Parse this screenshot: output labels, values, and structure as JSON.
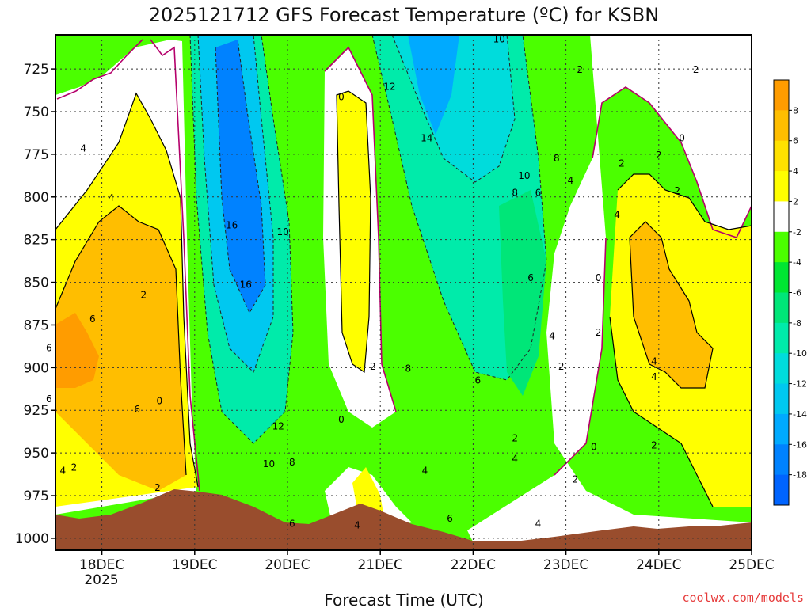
{
  "chart_data": {
    "type": "heatmap",
    "title": "2025121712 GFS Forecast Temperature (ºC) for KSBN",
    "xlabel": "Forecast Time (UTC)",
    "ylabel": "",
    "x_ticks": [
      "18DEC",
      "19DEC",
      "20DEC",
      "21DEC",
      "22DEC",
      "23DEC",
      "24DEC",
      "25DEC"
    ],
    "x_year": "2025",
    "x_range_days": [
      17.5,
      25.0
    ],
    "y_ticks": [
      725,
      750,
      775,
      800,
      825,
      850,
      875,
      900,
      925,
      950,
      975,
      1000
    ],
    "y_range_hpa": [
      705,
      1007
    ],
    "colorbar": {
      "labels": [
        "8",
        "6",
        "4",
        "2",
        "-2",
        "-4",
        "-6",
        "-8",
        "-10",
        "-12",
        "-14",
        "-16",
        "-18"
      ],
      "colors": [
        "#ff9c00",
        "#ffbe00",
        "#ffe100",
        "#ffff00",
        "#ffffff",
        "#4bff00",
        "#00e632",
        "#00e678",
        "#00ebaa",
        "#00dcdc",
        "#00c8f0",
        "#00aaff",
        "#0082ff",
        "#0064ff"
      ]
    },
    "contour_labels": [
      {
        "t": 17.8,
        "p": 771,
        "v": "4"
      },
      {
        "t": 18.1,
        "p": 800,
        "v": "4"
      },
      {
        "t": 17.9,
        "p": 871,
        "v": "6"
      },
      {
        "t": 17.43,
        "p": 888,
        "v": "6"
      },
      {
        "t": 17.43,
        "p": 918,
        "v": "6"
      },
      {
        "t": 18.38,
        "p": 924,
        "v": "6"
      },
      {
        "t": 17.58,
        "p": 960,
        "v": "4"
      },
      {
        "t": 17.7,
        "p": 958,
        "v": "2"
      },
      {
        "t": 18.45,
        "p": 857,
        "v": "2"
      },
      {
        "t": 18.62,
        "p": 919,
        "v": "0"
      },
      {
        "t": 18.6,
        "p": 970,
        "v": "2"
      },
      {
        "t": 19.4,
        "p": 816,
        "v": "16"
      },
      {
        "t": 19.55,
        "p": 851,
        "v": "16"
      },
      {
        "t": 19.95,
        "p": 820,
        "v": "10"
      },
      {
        "t": 19.9,
        "p": 934,
        "v": "12"
      },
      {
        "t": 19.8,
        "p": 956,
        "v": "10"
      },
      {
        "t": 20.05,
        "p": 955,
        "v": "8"
      },
      {
        "t": 20.05,
        "p": 991,
        "v": "6"
      },
      {
        "t": 20.58,
        "p": 741,
        "v": "0"
      },
      {
        "t": 20.58,
        "p": 930,
        "v": "0"
      },
      {
        "t": 20.75,
        "p": 992,
        "v": "4"
      },
      {
        "t": 20.92,
        "p": 899,
        "v": "2"
      },
      {
        "t": 21.1,
        "p": 735,
        "v": "12"
      },
      {
        "t": 21.5,
        "p": 765,
        "v": "14"
      },
      {
        "t": 21.3,
        "p": 900,
        "v": "8"
      },
      {
        "t": 21.48,
        "p": 960,
        "v": "4"
      },
      {
        "t": 21.75,
        "p": 988,
        "v": "6"
      },
      {
        "t": 22.05,
        "p": 907,
        "v": "6"
      },
      {
        "t": 22.28,
        "p": 707,
        "v": "10"
      },
      {
        "t": 22.45,
        "p": 797,
        "v": "8"
      },
      {
        "t": 22.62,
        "p": 847,
        "v": "6"
      },
      {
        "t": 22.45,
        "p": 941,
        "v": "2"
      },
      {
        "t": 22.45,
        "p": 953,
        "v": "4"
      },
      {
        "t": 22.7,
        "p": 991,
        "v": "4"
      },
      {
        "t": 22.85,
        "p": 881,
        "v": "4"
      },
      {
        "t": 22.7,
        "p": 797,
        "v": "6"
      },
      {
        "t": 22.55,
        "p": 787,
        "v": "10"
      },
      {
        "t": 22.9,
        "p": 777,
        "v": "8"
      },
      {
        "t": 23.05,
        "p": 790,
        "v": "4"
      },
      {
        "t": 23.15,
        "p": 725,
        "v": "2"
      },
      {
        "t": 22.95,
        "p": 899,
        "v": "2"
      },
      {
        "t": 23.1,
        "p": 965,
        "v": "2"
      },
      {
        "t": 23.6,
        "p": 780,
        "v": "2"
      },
      {
        "t": 23.55,
        "p": 810,
        "v": "4"
      },
      {
        "t": 23.35,
        "p": 847,
        "v": "0"
      },
      {
        "t": 23.35,
        "p": 879,
        "v": "2"
      },
      {
        "t": 23.3,
        "p": 946,
        "v": "0"
      },
      {
        "t": 24.0,
        "p": 775,
        "v": "2"
      },
      {
        "t": 24.2,
        "p": 796,
        "v": "2"
      },
      {
        "t": 24.4,
        "p": 725,
        "v": "2"
      },
      {
        "t": 24.25,
        "p": 765,
        "v": "0"
      },
      {
        "t": 23.95,
        "p": 896,
        "v": "4"
      },
      {
        "t": 23.95,
        "p": 905,
        "v": "4"
      },
      {
        "t": 23.95,
        "p": 945,
        "v": "2"
      }
    ]
  },
  "credit": "coolwx.com/models"
}
